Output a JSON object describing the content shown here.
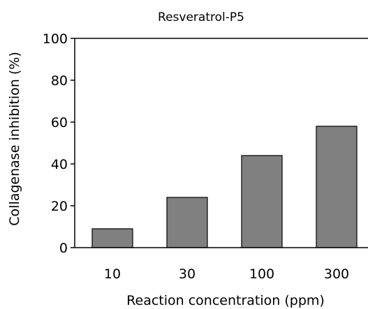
{
  "chart_data": {
    "type": "bar",
    "title": "Resveratrol-P5",
    "xlabel": "Reaction concentration (ppm)",
    "ylabel": "Collagenase inhibition (%)",
    "categories": [
      "10",
      "30",
      "100",
      "300"
    ],
    "values": [
      9,
      24,
      44,
      58
    ],
    "ylim": [
      0,
      100
    ],
    "yticks": [
      "0",
      "20",
      "40",
      "60",
      "80",
      "100"
    ],
    "grid": false,
    "colors": {
      "bar": "#808080",
      "bar_edge": "#000000"
    }
  }
}
